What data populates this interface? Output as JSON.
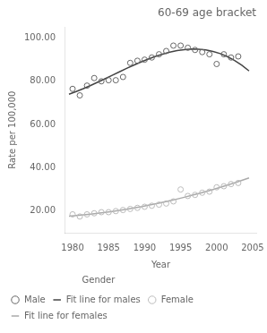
{
  "chart_data": {
    "type": "scatter",
    "title": "60-69 age bracket",
    "x_label": "Year",
    "y_label": "Rate per 100,000",
    "xlim": [
      1979,
      2005.5
    ],
    "xticks": [
      1980,
      1985,
      1990,
      1995,
      2000,
      2005
    ],
    "ylim": [
      10,
      105
    ],
    "yticks": [
      {
        "value": 20,
        "label": "20.00"
      },
      {
        "value": 40,
        "label": "40.00"
      },
      {
        "value": 60,
        "label": "60.00"
      },
      {
        "value": 80,
        "label": "80.00"
      },
      {
        "value": 100,
        "label": "100.00"
      }
    ],
    "grid": false,
    "legend": "bottom",
    "legend_title": "Gender",
    "series": [
      {
        "name": "Male",
        "type": "scatter",
        "marker": "circle",
        "color": "#666666",
        "x": [
          1980,
          1981,
          1982,
          1983,
          1984,
          1985,
          1986,
          1987,
          1988,
          1989,
          1990,
          1991,
          1992,
          1993,
          1994,
          1995,
          1996,
          1997,
          1998,
          1999,
          2000,
          2001,
          2002,
          2003
        ],
        "values": [
          76.5,
          73.5,
          78.0,
          81.5,
          80.0,
          80.5,
          80.5,
          82.0,
          88.5,
          89.5,
          90.0,
          91.0,
          92.5,
          94.0,
          96.5,
          96.5,
          95.5,
          94.5,
          93.5,
          92.5,
          88.0,
          92.5,
          91.0,
          91.5
        ]
      },
      {
        "name": "Fit line for males",
        "type": "line",
        "line_style": "solid",
        "color": "#444444",
        "x": [
          1979.5,
          1980.5,
          1981.5,
          1982.5,
          1983.5,
          1984.5,
          1985.5,
          1986.5,
          1987.5,
          1988.5,
          1989.5,
          1990.5,
          1991.5,
          1992.5,
          1993.5,
          1994.5,
          1995.5,
          1996.5,
          1997.5,
          1998.5,
          1999.5,
          2000.5,
          2001.5,
          2002.5,
          2003.5,
          2004.5
        ],
        "values": [
          74.01,
          75.25,
          76.61,
          78.07,
          79.6,
          81.18,
          82.78,
          84.39,
          85.96,
          87.49,
          88.93,
          90.28,
          91.51,
          92.58,
          93.48,
          94.18,
          94.65,
          94.88,
          94.83,
          94.49,
          93.82,
          92.81,
          91.42,
          89.63,
          87.43,
          84.78
        ]
      },
      {
        "name": "Female",
        "type": "scatter",
        "marker": "circle",
        "color": "#bbbbbb",
        "x": [
          1980,
          1981,
          1982,
          1983,
          1984,
          1985,
          1986,
          1987,
          1988,
          1989,
          1990,
          1991,
          1992,
          1993,
          1994,
          1995,
          1996,
          1997,
          1998,
          1999,
          2000,
          2001,
          2002,
          2003
        ],
        "values": [
          18.5,
          17.5,
          18.5,
          19.0,
          19.5,
          19.5,
          20.0,
          20.5,
          21.0,
          21.5,
          22.0,
          22.5,
          23.0,
          23.5,
          24.5,
          30.0,
          27.0,
          27.5,
          28.5,
          29.0,
          31.0,
          31.5,
          32.5,
          33.0
        ]
      },
      {
        "name": "Fit line for females",
        "type": "line",
        "line_style": "solid",
        "color": "#aaaaaa",
        "x": [
          1979.5,
          1980.5,
          1981.5,
          1982.5,
          1983.5,
          1984.5,
          1985.5,
          1986.5,
          1987.5,
          1988.5,
          1989.5,
          1990.5,
          1991.5,
          1992.5,
          1993.5,
          1994.5,
          1995.5,
          1996.5,
          1997.5,
          1998.5,
          1999.5,
          2000.5,
          2001.5,
          2002.5,
          2003.5,
          2004.5
        ],
        "values": [
          17.68,
          17.95,
          18.26,
          18.61,
          18.99,
          19.41,
          19.86,
          20.35,
          20.88,
          21.44,
          22.04,
          22.68,
          23.35,
          24.05,
          24.79,
          25.57,
          26.39,
          27.24,
          28.12,
          29.05,
          30.0,
          31.0,
          32.03,
          33.1,
          34.2,
          35.34
        ]
      }
    ]
  }
}
